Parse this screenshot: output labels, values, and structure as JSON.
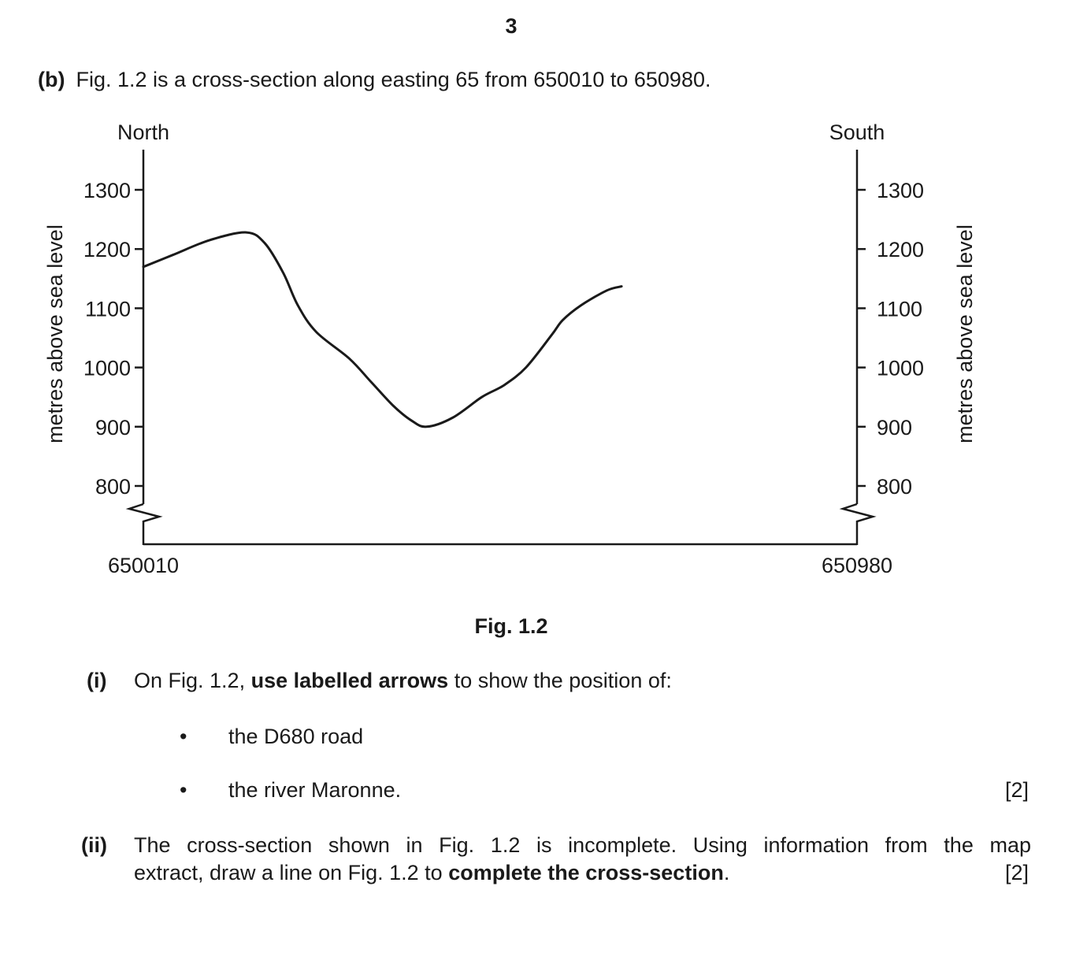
{
  "page": {
    "number": "3"
  },
  "question": {
    "part_label": "(b)",
    "intro": "Fig. 1.2 is a cross-section along easting 65 from 650010 to 650980."
  },
  "figure": {
    "caption": "Fig. 1.2",
    "left_direction": "North",
    "right_direction": "South",
    "y_axis_label": "metres above sea level",
    "x_start_label": "650010",
    "x_end_label": "650980"
  },
  "chart_data": {
    "type": "line",
    "xlabel": "",
    "ylabel": "metres above sea level",
    "ylim": [
      750,
      1300
    ],
    "y_ticks": [
      "1300",
      "1200",
      "1100",
      "1000",
      "900",
      "800"
    ],
    "x_start": "650010",
    "x_end": "650980",
    "axis_break": true,
    "series": [
      {
        "x": [
          650010,
          650050,
          650100,
          650150,
          650175,
          650200,
          650220,
          650245,
          650290,
          650320,
          650350,
          650375,
          650395,
          650430,
          650470,
          650500,
          650530,
          650565,
          650580,
          650605,
          650640,
          650660
        ],
        "values": [
          1170,
          1190,
          1215,
          1228,
          1210,
          1160,
          1105,
          1060,
          1015,
          975,
          935,
          910,
          900,
          915,
          950,
          970,
          1000,
          1055,
          1080,
          1105,
          1130,
          1137
        ]
      }
    ]
  },
  "part_i": {
    "label": "(i)",
    "text_before": "On Fig. 1.2, ",
    "text_bold": "use labelled arrows",
    "text_after": " to show the position of:",
    "bullets": [
      "the D680 road",
      "the river Maronne."
    ],
    "marks": "[2]"
  },
  "part_ii": {
    "label": "(ii)",
    "line1": "The cross-section shown in Fig. 1.2 is incomplete. Using information from the map",
    "line2_before": "extract, draw a line on Fig. 1.2 to ",
    "line2_bold": "complete the cross-section",
    "line2_after": ".",
    "marks": "[2]"
  }
}
